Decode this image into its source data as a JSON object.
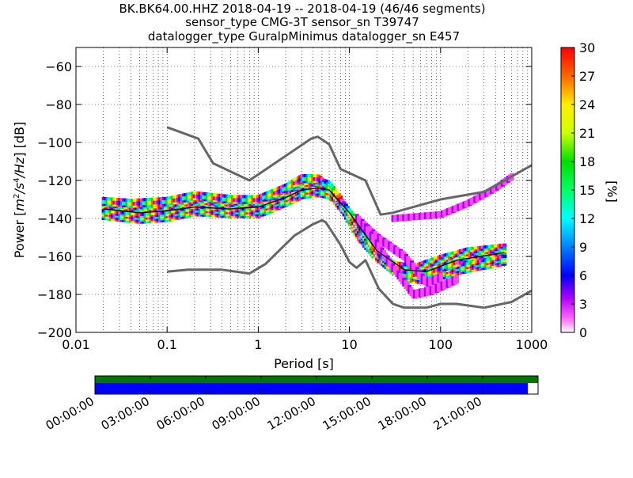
{
  "title_lines": [
    "BK.BK64.00.HHZ   2018-04-19 -- 2018-04-19  (46/46 segments)",
    "sensor_type CMG-3T sensor_sn T39747",
    "datalogger_type GuralpMinimus datalogger_sn E457"
  ],
  "colors": {
    "model_curves": "#666666",
    "availability_top": "#007700",
    "availability_bottom": "#0000ff",
    "grid": "#000000"
  },
  "chart_data": {
    "type": "heatmap",
    "xlabel": "Period [s]",
    "ylabel": "Power [m^2/s^4/Hz] [dB]",
    "xscale": "log",
    "xlim": [
      0.01,
      1000
    ],
    "ylim": [
      -200,
      -50
    ],
    "xticks": [
      0.01,
      0.1,
      1,
      10,
      100,
      1000
    ],
    "xtick_labels": [
      "0.01",
      "0.1",
      "1",
      "10",
      "100",
      "1000"
    ],
    "yticks": [
      -200,
      -180,
      -160,
      -140,
      -120,
      -100,
      -80,
      -60
    ],
    "ytick_labels": [
      "−200",
      "−180",
      "−160",
      "−140",
      "−120",
      "−100",
      "−80",
      "−60"
    ],
    "grid": true,
    "colorbar": {
      "label": "[%]",
      "range": [
        0,
        30
      ],
      "ticks": [
        0,
        3,
        6,
        9,
        12,
        15,
        18,
        21,
        24,
        27,
        30
      ],
      "tick_labels": [
        "0",
        "3",
        "6",
        "9",
        "12",
        "15",
        "18",
        "21",
        "24",
        "27",
        "30"
      ]
    },
    "noise_model_high": [
      [
        0.1,
        -92
      ],
      [
        0.22,
        -98
      ],
      [
        0.32,
        -111
      ],
      [
        0.8,
        -120
      ],
      [
        3.8,
        -98
      ],
      [
        4.5,
        -97
      ],
      [
        6,
        -101
      ],
      [
        8,
        -114
      ],
      [
        15,
        -120
      ],
      [
        22,
        -138
      ],
      [
        30,
        -137
      ],
      [
        100,
        -130
      ],
      [
        300,
        -126
      ],
      [
        1000,
        -112
      ]
    ],
    "noise_model_low": [
      [
        0.1,
        -168
      ],
      [
        0.17,
        -167
      ],
      [
        0.4,
        -167
      ],
      [
        0.8,
        -169
      ],
      [
        1.2,
        -164
      ],
      [
        2.5,
        -149
      ],
      [
        4,
        -143
      ],
      [
        5,
        -141
      ],
      [
        5.5,
        -142
      ],
      [
        8,
        -154
      ],
      [
        10,
        -163
      ],
      [
        12,
        -166
      ],
      [
        15,
        -162
      ],
      [
        21,
        -177
      ],
      [
        30,
        -185
      ],
      [
        40,
        -187
      ],
      [
        70,
        -187
      ],
      [
        100,
        -185
      ],
      [
        150,
        -185
      ],
      [
        300,
        -187
      ],
      [
        600,
        -184
      ],
      [
        1000,
        -178
      ]
    ],
    "psd_bands": [
      {
        "name": "",
        "points": [
          [
            0.02,
            -134
          ],
          [
            0.05,
            -136
          ],
          [
            0.08,
            -137
          ],
          [
            0.15,
            -133
          ],
          [
            0.3,
            -132
          ],
          [
            0.8,
            -134
          ],
          [
            1.3,
            -130
          ],
          [
            2.0,
            -127
          ],
          [
            3.0,
            -123
          ],
          [
            4.5,
            -122
          ],
          [
            6,
            -124
          ],
          [
            8,
            -132
          ],
          [
            12,
            -147
          ],
          [
            18,
            -157
          ],
          [
            30,
            -166
          ],
          [
            50,
            -168
          ],
          [
            100,
            -163
          ],
          [
            200,
            -159
          ],
          [
            500,
            -157
          ]
        ],
        "halfwidth": 3
      },
      {
        "name": "",
        "points": [
          [
            0.02,
            -138
          ],
          [
            0.05,
            -140
          ],
          [
            0.1,
            -139
          ],
          [
            0.2,
            -136
          ],
          [
            0.5,
            -137
          ],
          [
            1,
            -137
          ],
          [
            2,
            -131
          ],
          [
            3,
            -127
          ],
          [
            4.5,
            -126
          ],
          [
            6,
            -127
          ],
          [
            10,
            -139
          ],
          [
            20,
            -160
          ],
          [
            40,
            -171
          ],
          [
            70,
            -172
          ],
          [
            150,
            -167
          ],
          [
            500,
            -162
          ]
        ],
        "halfwidth": 2
      },
      {
        "name": "",
        "points": [
          [
            0.02,
            -131
          ],
          [
            0.04,
            -132
          ],
          [
            0.1,
            -131
          ],
          [
            0.2,
            -128
          ],
          [
            0.5,
            -130
          ],
          [
            1,
            -130
          ],
          [
            2,
            -124
          ],
          [
            3,
            -119
          ],
          [
            4.5,
            -119
          ],
          [
            6,
            -124
          ],
          [
            10,
            -137
          ],
          [
            20,
            -158
          ],
          [
            40,
            -170
          ],
          [
            70,
            -169
          ],
          [
            150,
            -163
          ]
        ],
        "halfwidth": 1.5
      },
      {
        "name": "",
        "points": [
          [
            12,
            -140
          ],
          [
            20,
            -150
          ],
          [
            40,
            -160
          ],
          [
            70,
            -174
          ],
          [
            100,
            -171
          ]
        ],
        "halfwidth": 1.5
      },
      {
        "name": "",
        "points": [
          [
            15,
            -145
          ],
          [
            30,
            -166
          ],
          [
            50,
            -180
          ],
          [
            80,
            -178
          ],
          [
            150,
            -172
          ]
        ],
        "halfwidth": 1.5
      },
      {
        "name": "",
        "points": [
          [
            30,
            -140
          ],
          [
            100,
            -138
          ],
          [
            200,
            -132
          ],
          [
            400,
            -124
          ],
          [
            600,
            -118
          ]
        ],
        "halfwidth": 1
      }
    ],
    "psd_mean_line": [
      [
        0.02,
        -135
      ],
      [
        0.05,
        -137
      ],
      [
        0.1,
        -136
      ],
      [
        0.2,
        -134
      ],
      [
        0.5,
        -135
      ],
      [
        1,
        -134
      ],
      [
        2,
        -129
      ],
      [
        3,
        -125
      ],
      [
        4.5,
        -124
      ],
      [
        6,
        -125
      ],
      [
        10,
        -137
      ],
      [
        20,
        -157
      ],
      [
        40,
        -167
      ],
      [
        70,
        -168
      ],
      [
        150,
        -162
      ],
      [
        500,
        -158
      ]
    ],
    "availability": {
      "time_tick_labels": [
        "00:00:00",
        "03:00:00",
        "06:00:00",
        "09:00:00",
        "12:00:00",
        "15:00:00",
        "18:00:00",
        "21:00:00"
      ],
      "data_fraction": 0.977
    }
  }
}
